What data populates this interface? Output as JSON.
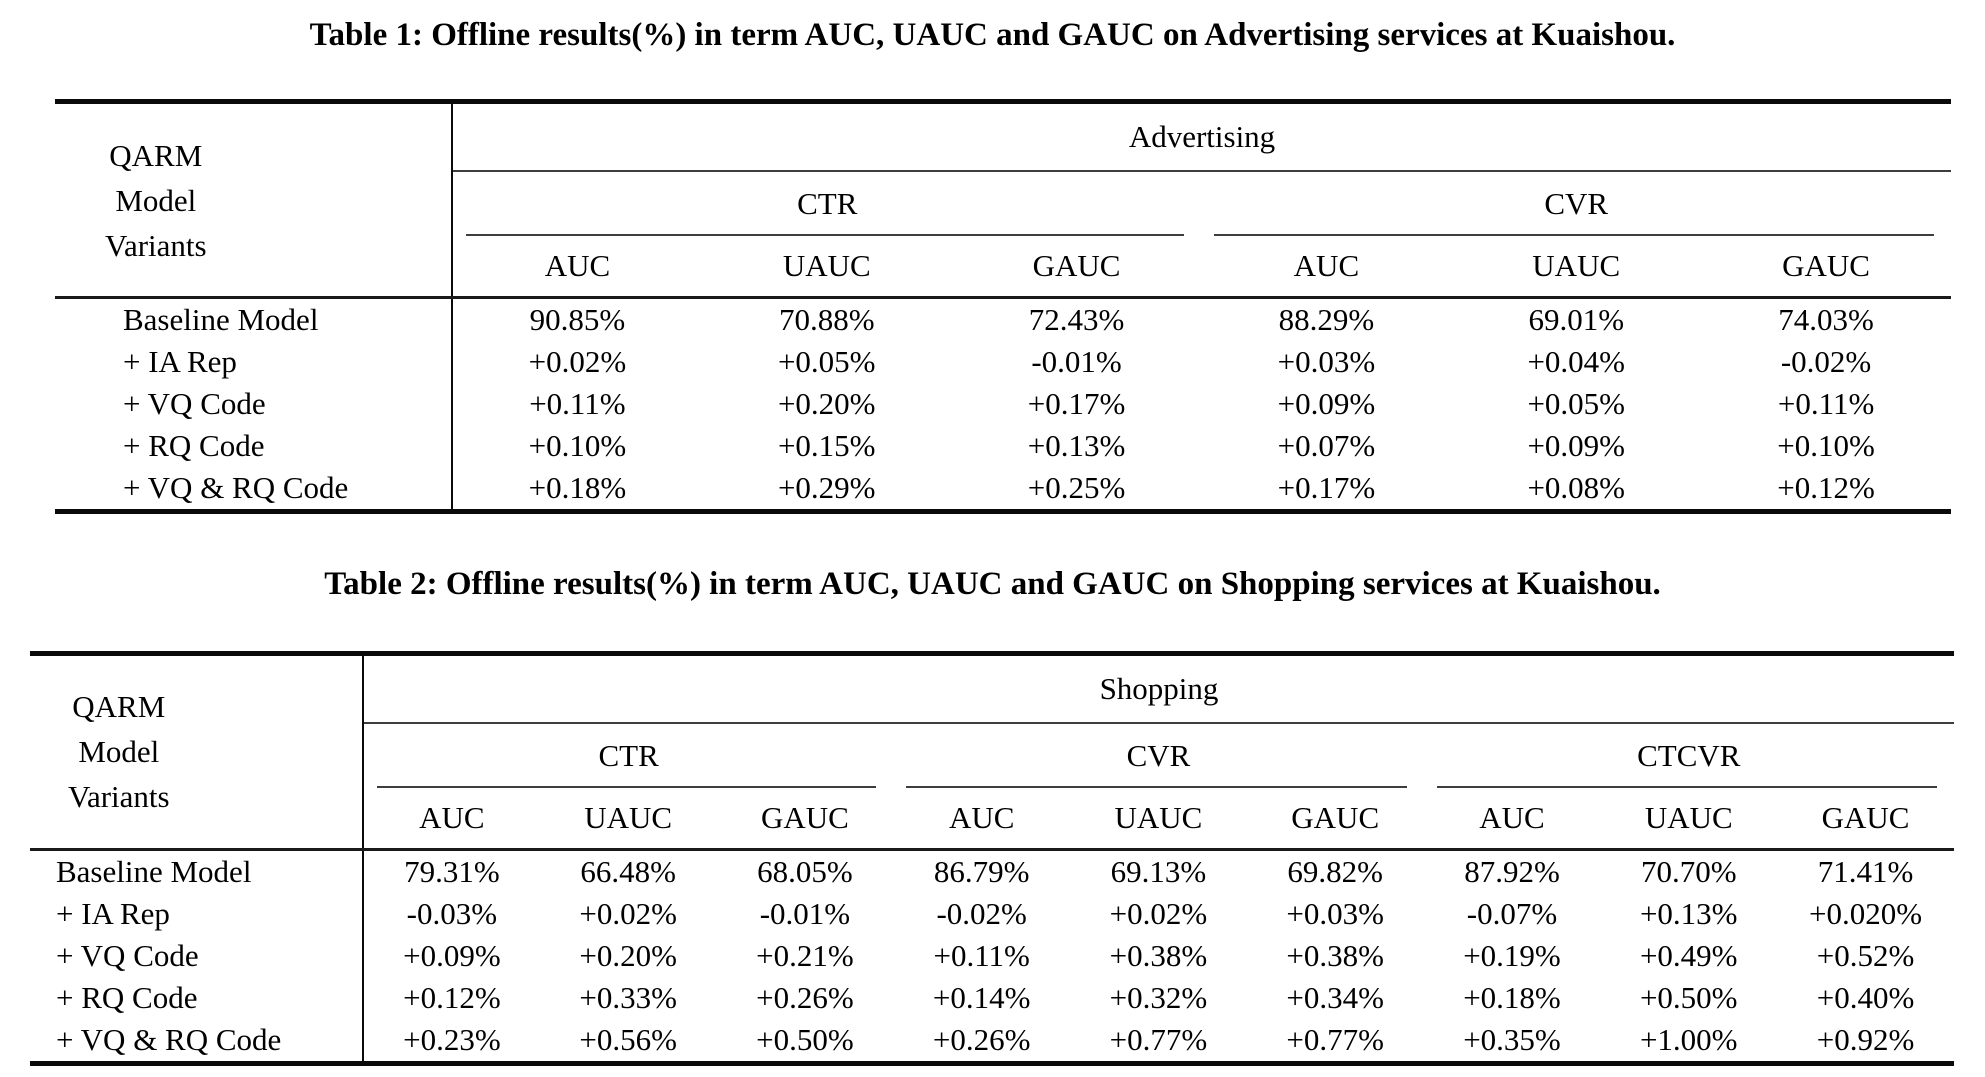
{
  "table1": {
    "title": "Table 1: Offline results(%) in term AUC, UAUC and GAUC on Advertising services at Kuaishou.",
    "stub_header": [
      "QARM",
      "Model",
      "Variants"
    ],
    "service_header": "Advertising",
    "groups": [
      {
        "label": "CTR"
      },
      {
        "label": "CVR"
      }
    ],
    "metric_headers": [
      "AUC",
      "UAUC",
      "GAUC",
      "AUC",
      "UAUC",
      "GAUC"
    ],
    "rows": [
      {
        "label": "Baseline Model",
        "values": [
          "90.85%",
          "70.88%",
          "72.43%",
          "88.29%",
          "69.01%",
          "74.03%"
        ]
      },
      {
        "label": "+ IA Rep",
        "values": [
          "+0.02%",
          "+0.05%",
          "-0.01%",
          "+0.03%",
          "+0.04%",
          "-0.02%"
        ]
      },
      {
        "label": "+ VQ Code",
        "values": [
          "+0.11%",
          "+0.20%",
          "+0.17%",
          "+0.09%",
          "+0.05%",
          "+0.11%"
        ]
      },
      {
        "label": "+ RQ Code",
        "values": [
          "+0.10%",
          "+0.15%",
          "+0.13%",
          "+0.07%",
          "+0.09%",
          "+0.10%"
        ]
      },
      {
        "label": "+ VQ & RQ Code",
        "values": [
          "+0.18%",
          "+0.29%",
          "+0.25%",
          "+0.17%",
          "+0.08%",
          "+0.12%"
        ]
      }
    ]
  },
  "table2": {
    "title": "Table 2: Offline results(%) in term AUC, UAUC and GAUC on Shopping services at Kuaishou.",
    "stub_header": [
      "QARM",
      "Model",
      "Variants"
    ],
    "service_header": "Shopping",
    "groups": [
      {
        "label": "CTR"
      },
      {
        "label": "CVR"
      },
      {
        "label": "CTCVR"
      }
    ],
    "metric_headers": [
      "AUC",
      "UAUC",
      "GAUC",
      "AUC",
      "UAUC",
      "GAUC",
      "AUC",
      "UAUC",
      "GAUC"
    ],
    "rows": [
      {
        "label": "Baseline Model",
        "values": [
          "79.31%",
          "66.48%",
          "68.05%",
          "86.79%",
          "69.13%",
          "69.82%",
          "87.92%",
          "70.70%",
          "71.41%"
        ]
      },
      {
        "label": "+ IA Rep",
        "values": [
          "-0.03%",
          "+0.02%",
          "-0.01%",
          "-0.02%",
          "+0.02%",
          "+0.03%",
          "-0.07%",
          "+0.13%",
          "+0.020%"
        ]
      },
      {
        "label": "+ VQ Code",
        "values": [
          "+0.09%",
          "+0.20%",
          "+0.21%",
          "+0.11%",
          "+0.38%",
          "+0.38%",
          "+0.19%",
          "+0.49%",
          "+0.52%"
        ]
      },
      {
        "label": "+ RQ Code",
        "values": [
          "+0.12%",
          "+0.33%",
          "+0.26%",
          "+0.14%",
          "+0.32%",
          "+0.34%",
          "+0.18%",
          "+0.50%",
          "+0.40%"
        ]
      },
      {
        "label": "+ VQ & RQ Code",
        "values": [
          "+0.23%",
          "+0.56%",
          "+0.50%",
          "+0.26%",
          "+0.77%",
          "+0.77%",
          "+0.35%",
          "+1.00%",
          "+0.92%"
        ]
      }
    ]
  }
}
